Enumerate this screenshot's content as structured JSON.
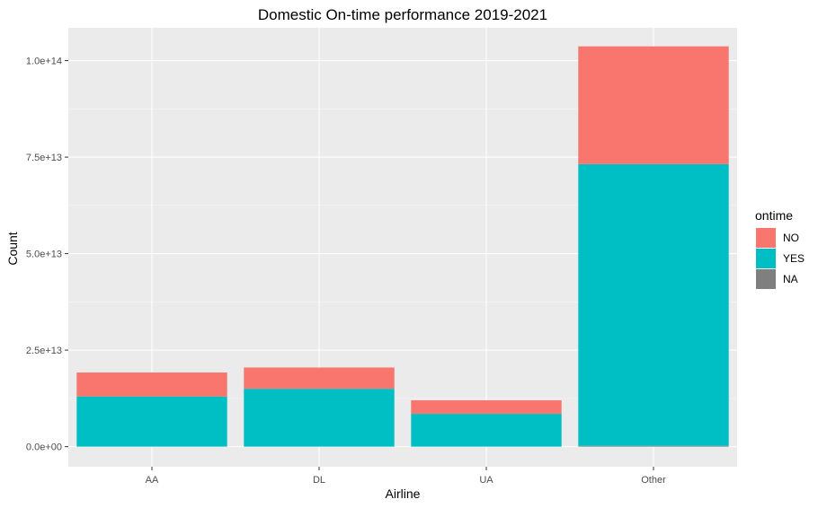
{
  "chart_data": {
    "type": "bar",
    "stacked": true,
    "title": "Domestic On-time performance 2019-2021",
    "xlabel": "Airline",
    "ylabel": "Count",
    "categories": [
      "AA",
      "DL",
      "UA",
      "Other"
    ],
    "series": [
      {
        "name": "NO",
        "color": "#F8766D",
        "values": [
          6200000000000.0,
          5500000000000.0,
          3500000000000.0,
          30500000000000.0
        ]
      },
      {
        "name": "YES",
        "color": "#00BFC4",
        "values": [
          13000000000000.0,
          15000000000000.0,
          8500000000000.0,
          73000000000000.0
        ]
      },
      {
        "name": "NA",
        "color": "#7F7F7F",
        "values": [
          0,
          0,
          0,
          200000000000.0
        ]
      }
    ],
    "yticks": [
      0,
      25000000000000.0,
      50000000000000.0,
      75000000000000.0,
      100000000000000.0
    ],
    "ytick_labels": [
      "0.0e+00",
      "2.5e+13",
      "5.0e+13",
      "7.5e+13",
      "1.0e+14"
    ],
    "ylim": [
      -5200000000000.0,
      108500000000000.0
    ],
    "grid": true,
    "legend": {
      "title": "ontime",
      "placement": "right"
    }
  }
}
